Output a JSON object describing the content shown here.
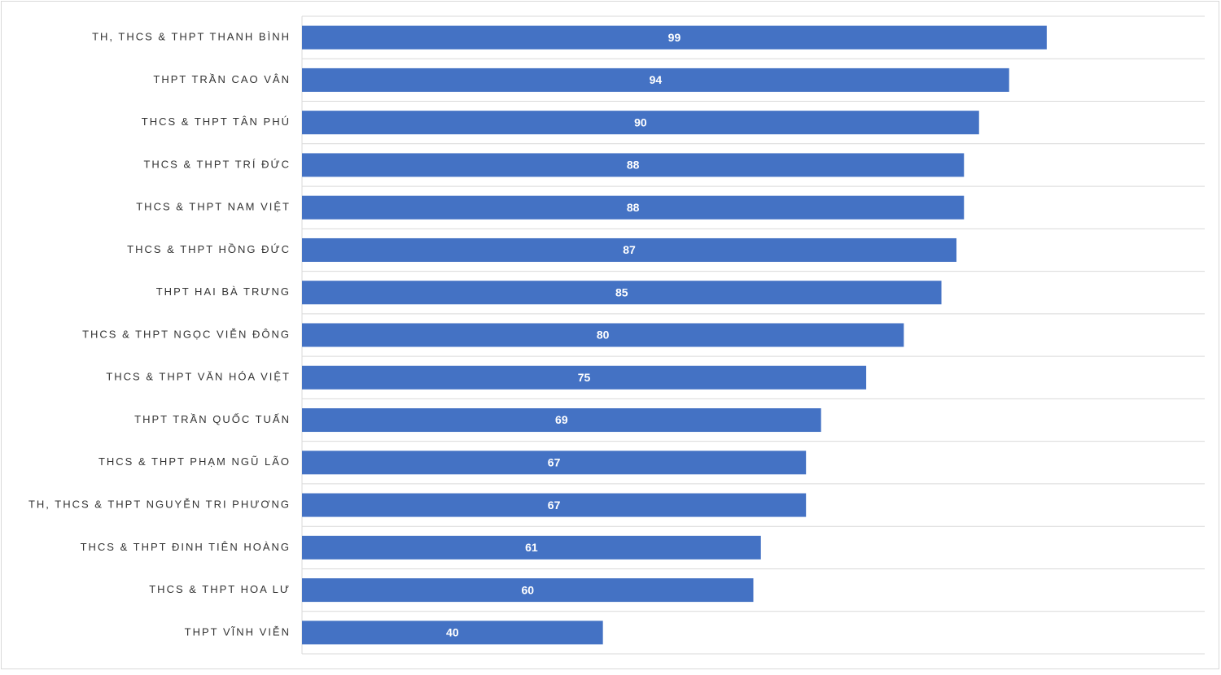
{
  "chart_data": {
    "type": "barh",
    "categories": [
      "TH, THCS & THPT THANH BÌNH",
      "THPT TRẦN CAO VÂN",
      "THCS & THPT TÂN PHÚ",
      "THCS & THPT TRÍ ĐỨC",
      "THCS & THPT NAM VIỆT",
      "THCS & THPT HỒNG ĐỨC",
      "THPT HAI BÀ TRƯNG",
      "THCS & THPT NGỌC VIỄN ĐÔNG",
      "THCS & THPT VĂN HÓA VIỆT",
      "THPT TRẦN QUỐC TUẤN",
      "THCS & THPT PHẠM NGŨ LÃO",
      "TH, THCS & THPT NGUYỄN TRI PHƯƠNG",
      "THCS & THPT ĐINH TIÊN HOÀNG",
      "THCS & THPT HOA LƯ",
      "THPT VĨNH VIỄN"
    ],
    "values": [
      99,
      94,
      90,
      88,
      88,
      87,
      85,
      80,
      75,
      69,
      67,
      67,
      61,
      60,
      40
    ],
    "color": "#4472c4",
    "xlim": [
      0,
      120
    ]
  }
}
